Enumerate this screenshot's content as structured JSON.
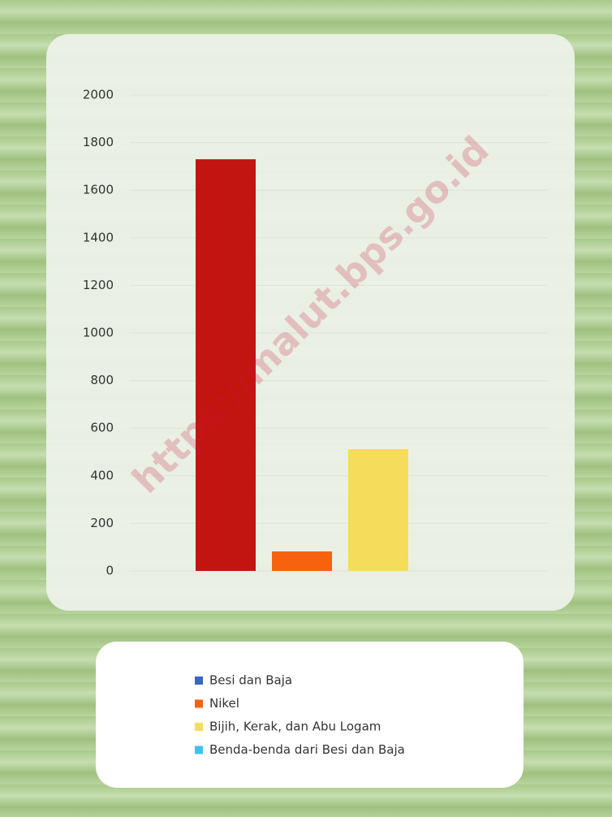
{
  "chart_data": {
    "type": "bar",
    "watermark": "https://malut.bps.go.id",
    "series": [
      {
        "name": "Besi dan Baja",
        "color": "#3a66c4",
        "bar_color": "#c3150f",
        "values": [
          1730
        ]
      },
      {
        "name": "Nikel",
        "color": "#f7620f",
        "bar_color": "#f7620f",
        "values": [
          82
        ]
      },
      {
        "name": "Bijih, Kerak, dan Abu Logam",
        "color": "#f5dc5a",
        "bar_color": "#f5dc5a",
        "values": [
          512
        ]
      },
      {
        "name": "Benda-benda dari Besi dan Baja",
        "color": "#3fc1ef",
        "bar_color": "#3fc1ef",
        "values": [
          0
        ]
      }
    ],
    "ylim": [
      0,
      2000
    ],
    "yticks": [
      0,
      200,
      400,
      600,
      800,
      1000,
      1200,
      1400,
      1600,
      1800,
      2000
    ],
    "grid": true
  }
}
